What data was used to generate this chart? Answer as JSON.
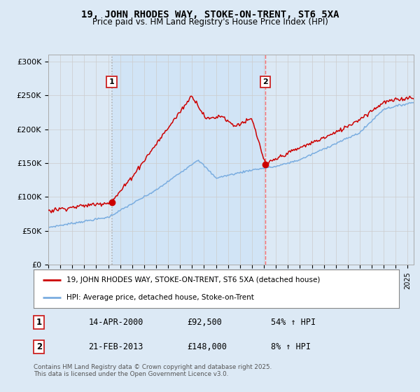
{
  "title": "19, JOHN RHODES WAY, STOKE-ON-TRENT, ST6 5XA",
  "subtitle": "Price paid vs. HM Land Registry's House Price Index (HPI)",
  "ylabel_ticks": [
    "£0",
    "£50K",
    "£100K",
    "£150K",
    "£200K",
    "£250K",
    "£300K"
  ],
  "ytick_values": [
    0,
    50000,
    100000,
    150000,
    200000,
    250000,
    300000
  ],
  "ylim": [
    0,
    310000
  ],
  "xlim_start": 1995.0,
  "xlim_end": 2025.5,
  "red_line_color": "#cc0000",
  "blue_line_color": "#7aade0",
  "marker1_date": 2000.29,
  "marker2_date": 2013.12,
  "marker1_price": 92500,
  "marker2_price": 148000,
  "legend_label1": "19, JOHN RHODES WAY, STOKE-ON-TRENT, ST6 5XA (detached house)",
  "legend_label2": "HPI: Average price, detached house, Stoke-on-Trent",
  "annot1_date_str": "14-APR-2000",
  "annot1_price_str": "£92,500",
  "annot1_hpi_str": "54% ↑ HPI",
  "annot2_date_str": "21-FEB-2013",
  "annot2_price_str": "£148,000",
  "annot2_hpi_str": "8% ↑ HPI",
  "footer_text": "Contains HM Land Registry data © Crown copyright and database right 2025.\nThis data is licensed under the Open Government Licence v3.0.",
  "bg_color": "#dce9f5",
  "shade_color": "#d0e4f7",
  "grid_color": "#cccccc",
  "vline1_color": "#aaaaaa",
  "vline2_color": "#ff5555"
}
